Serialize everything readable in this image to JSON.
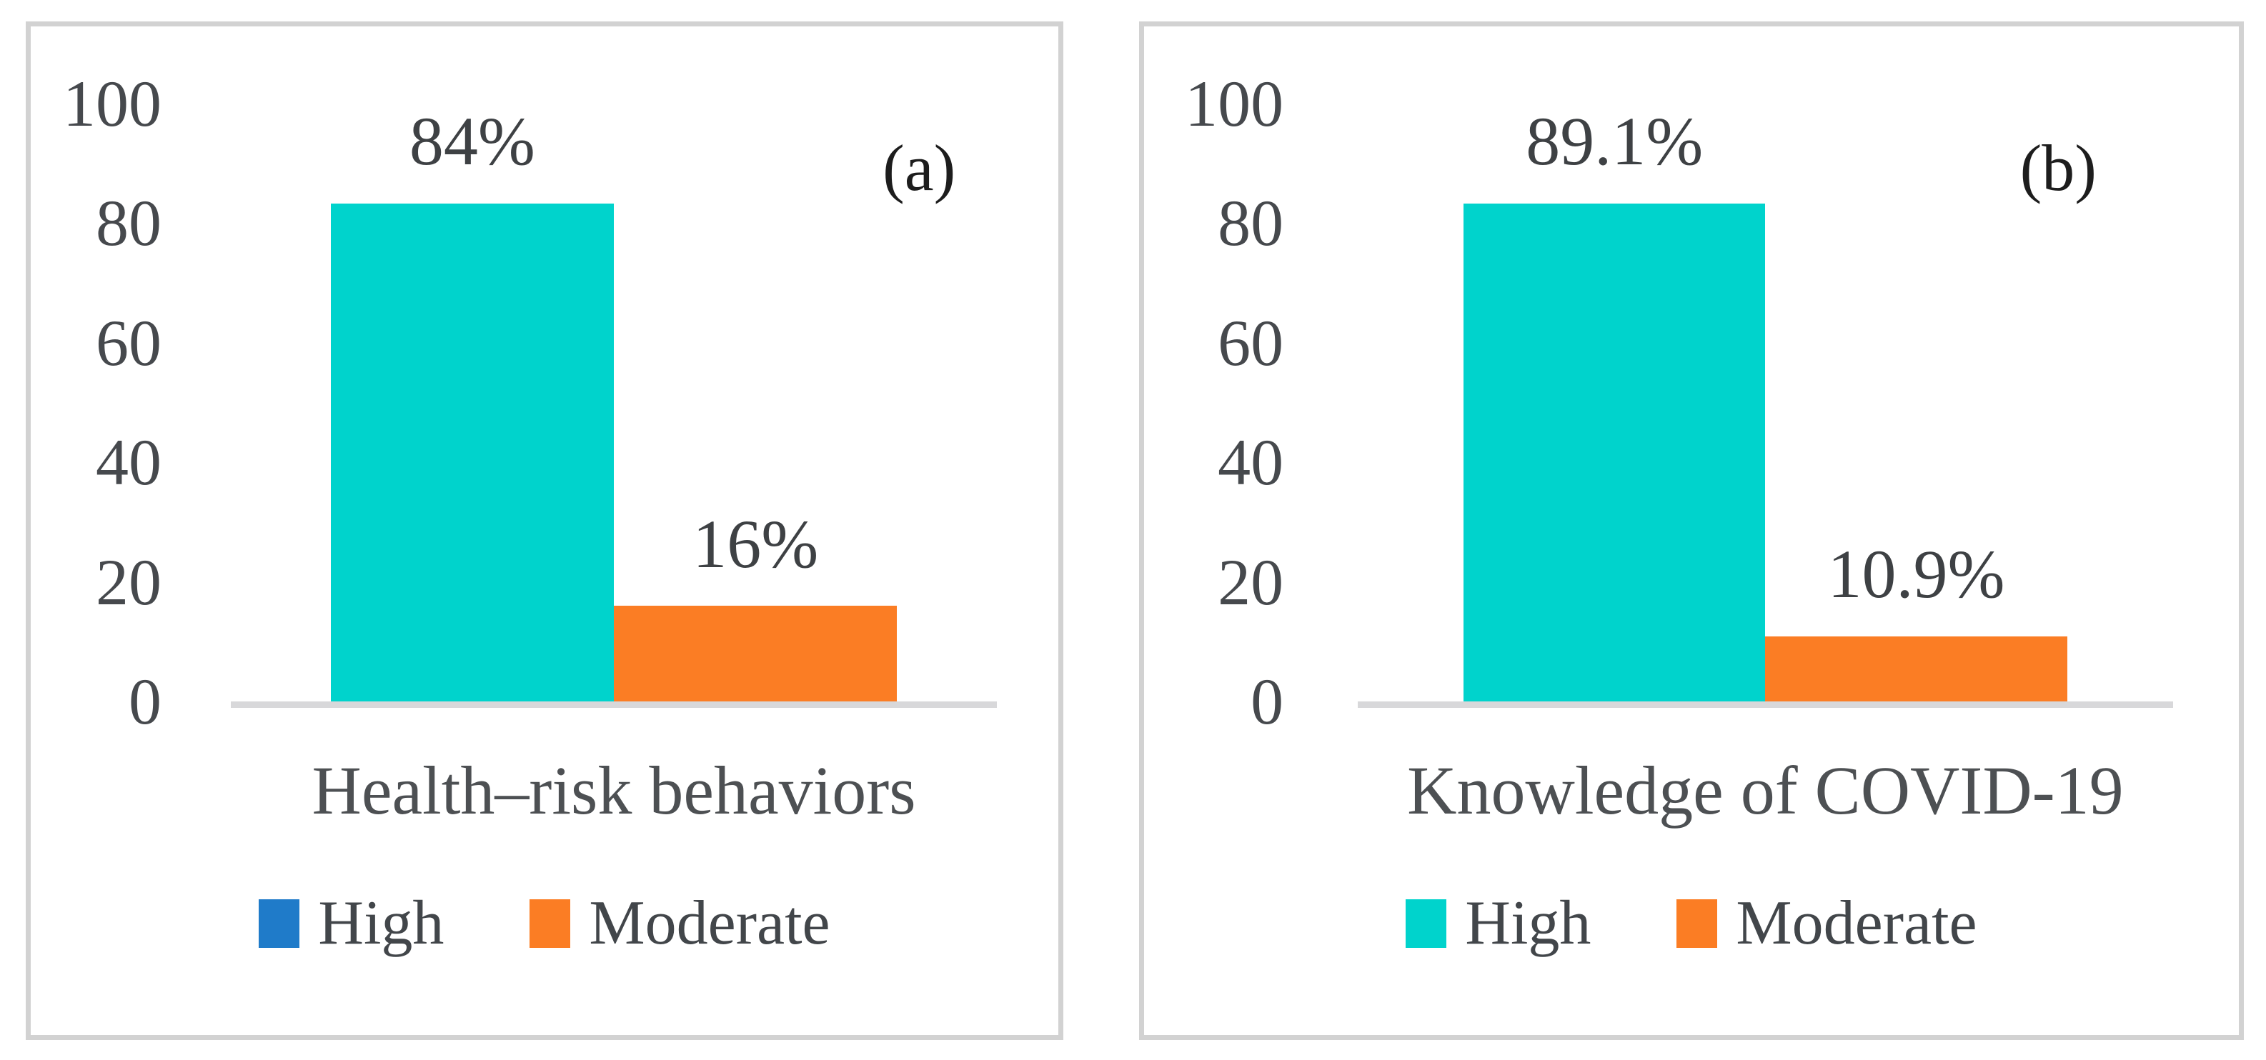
{
  "chart_data": [
    {
      "type": "bar",
      "panel_label": "(a)",
      "title": "",
      "xlabel": "Health–risk behaviors",
      "ylabel": "",
      "categories": [
        "High",
        "Moderate"
      ],
      "values": [
        84,
        16
      ],
      "data_labels": [
        "84%",
        "16%"
      ],
      "bar_colors": [
        "#00d3cc",
        "#fb7d24"
      ],
      "legend": [
        {
          "label": "High",
          "color": "#1f7bc9"
        },
        {
          "label": "Moderate",
          "color": "#fb7d24"
        }
      ],
      "legend_position": "bottom",
      "yticks": [
        "100",
        "80",
        "60",
        "40",
        "20",
        "0"
      ],
      "ylim": [
        0,
        100
      ],
      "grid": false
    },
    {
      "type": "bar",
      "panel_label": "(b)",
      "title": "",
      "xlabel": "Knowledge of COVID-19",
      "ylabel": "",
      "categories": [
        "High",
        "Moderate"
      ],
      "values": [
        89.1,
        10.9
      ],
      "data_labels": [
        "89.1%",
        "10.9%"
      ],
      "bar_colors": [
        "#00d3cc",
        "#fb7d24"
      ],
      "legend": [
        {
          "label": "High",
          "color": "#00d3cc"
        },
        {
          "label": "Moderate",
          "color": "#fb7d24"
        }
      ],
      "legend_position": "bottom",
      "yticks": [
        "100",
        "80",
        "60",
        "40",
        "20",
        "0"
      ],
      "ylim": [
        0,
        100
      ],
      "grid": false
    }
  ]
}
